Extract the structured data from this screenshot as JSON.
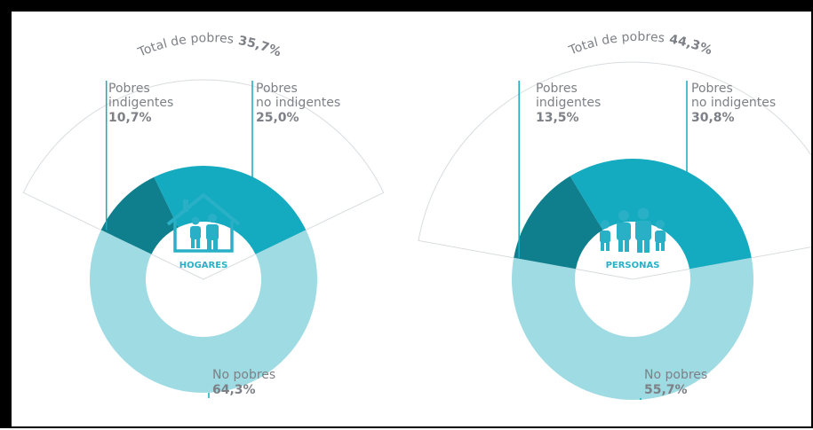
{
  "chart_data": [
    {
      "type": "pie",
      "center_label": "HOGARES",
      "total": {
        "label": "Total de pobres",
        "value": "35,7%"
      },
      "segments": [
        {
          "label_1": "Pobres",
          "label_2": "indigentes",
          "value_text": "10,7%",
          "value": 10.7,
          "color": "#0f7f8e"
        },
        {
          "label_1": "Pobres",
          "label_2": "no indigentes",
          "value_text": "25,0%",
          "value": 25.0,
          "color": "#14aac0"
        },
        {
          "label_1": "No pobres",
          "label_2": "",
          "value_text": "64,3%",
          "value": 64.3,
          "color": "#9fdbe3"
        }
      ]
    },
    {
      "type": "pie",
      "center_label": "PERSONAS",
      "total": {
        "label": "Total de pobres",
        "value": "44,3%"
      },
      "segments": [
        {
          "label_1": "Pobres",
          "label_2": "indigentes",
          "value_text": "13,5%",
          "value": 13.5,
          "color": "#0f7f8e"
        },
        {
          "label_1": "Pobres",
          "label_2": "no indigentes",
          "value_text": "30,8%",
          "value": 30.8,
          "color": "#14aac0"
        },
        {
          "label_1": "No pobres",
          "label_2": "",
          "value_text": "55,7%",
          "value": 55.7,
          "color": "#9fdbe3"
        }
      ]
    }
  ]
}
